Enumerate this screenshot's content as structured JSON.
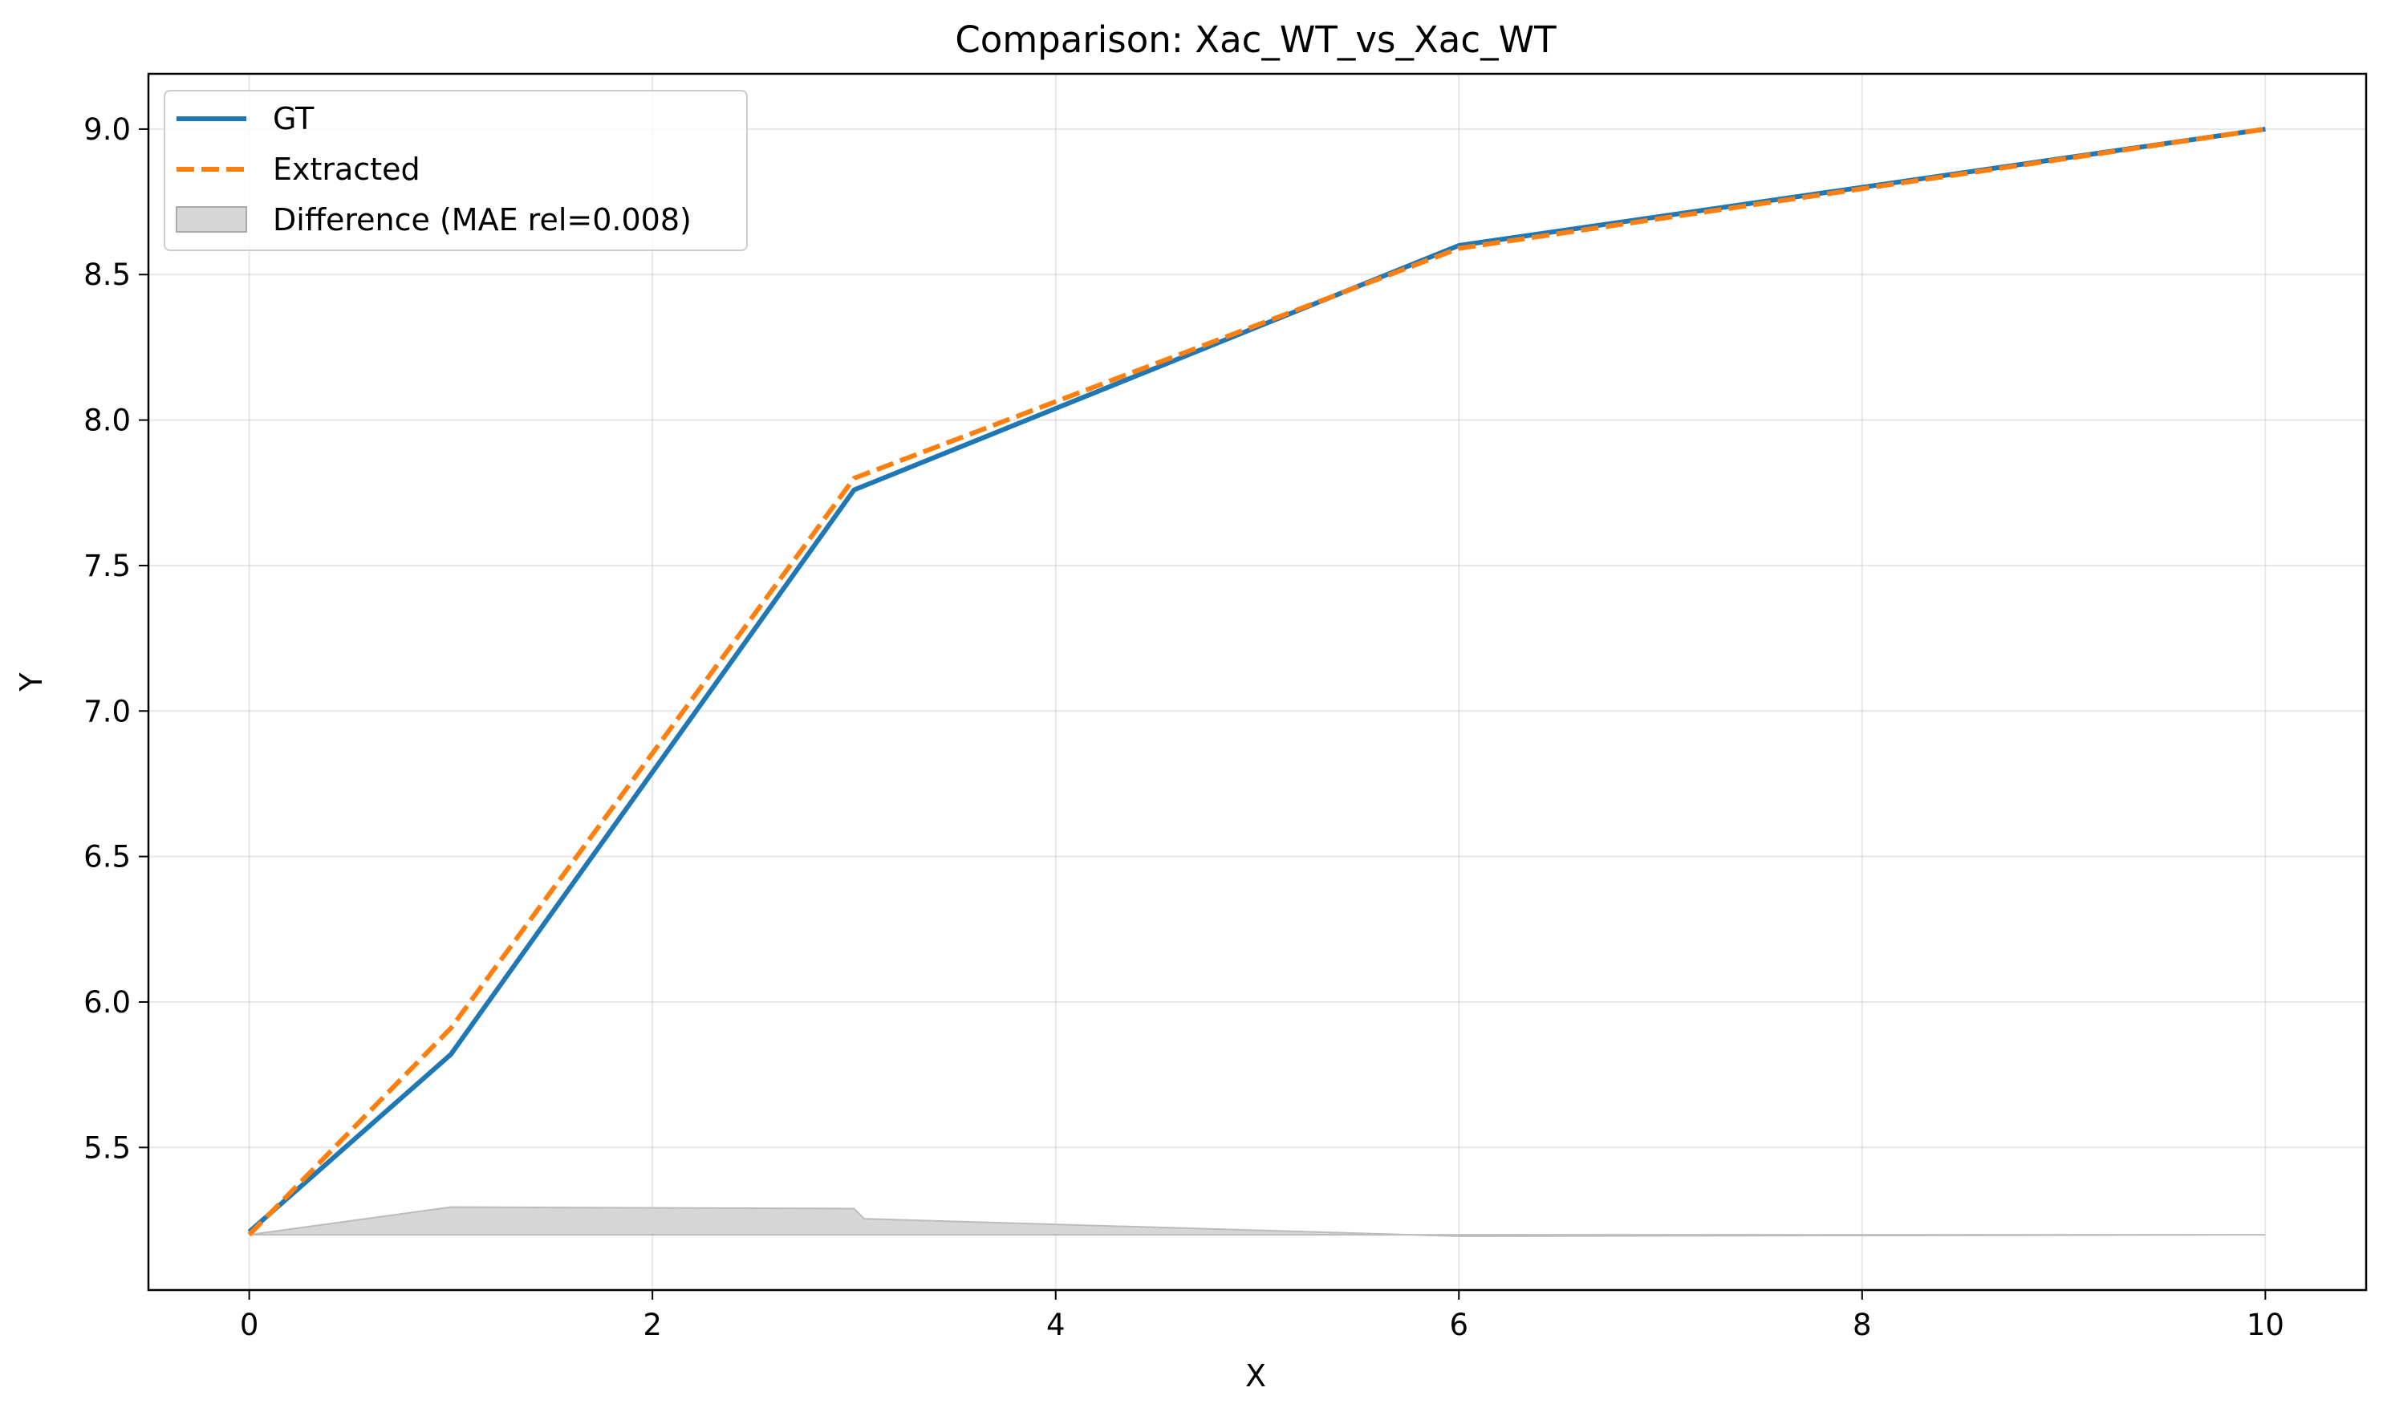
{
  "chart_data": {
    "type": "line",
    "title": "Comparison: Xac_WT_vs_Xac_WT",
    "xlabel": "X",
    "ylabel": "Y",
    "xlim": [
      -0.5,
      10.5
    ],
    "ylim": [
      5.01,
      9.19
    ],
    "x_ticks": [
      0,
      2,
      4,
      6,
      8,
      10
    ],
    "x_tick_labels": [
      "0",
      "2",
      "4",
      "6",
      "8",
      "10"
    ],
    "y_ticks": [
      5.5,
      6.0,
      6.5,
      7.0,
      7.5,
      8.0,
      8.5,
      9.0
    ],
    "y_tick_labels": [
      "5.5",
      "6.0",
      "6.5",
      "7.0",
      "7.5",
      "8.0",
      "8.5",
      "9.0"
    ],
    "grid": true,
    "legend_position": "upper left",
    "series": [
      {
        "name": "GT",
        "style": "solid",
        "color": "#1f77b4",
        "x": [
          0,
          1,
          3,
          6,
          10
        ],
        "y": [
          5.21,
          5.82,
          7.76,
          8.6,
          9.0
        ]
      },
      {
        "name": "Extracted",
        "style": "dashed",
        "color": "#ff7f0e",
        "x": [
          0,
          1,
          3,
          6,
          10
        ],
        "y": [
          5.2,
          5.91,
          7.8,
          8.59,
          9.0
        ]
      }
    ],
    "difference": {
      "name": "Difference (MAE rel=0.008)",
      "color": "#a0a0a0",
      "baseline": 5.2,
      "x": [
        0,
        1,
        3,
        3.05,
        6,
        10
      ],
      "y": [
        5.2,
        5.295,
        5.29,
        5.255,
        5.195,
        5.2
      ]
    }
  }
}
